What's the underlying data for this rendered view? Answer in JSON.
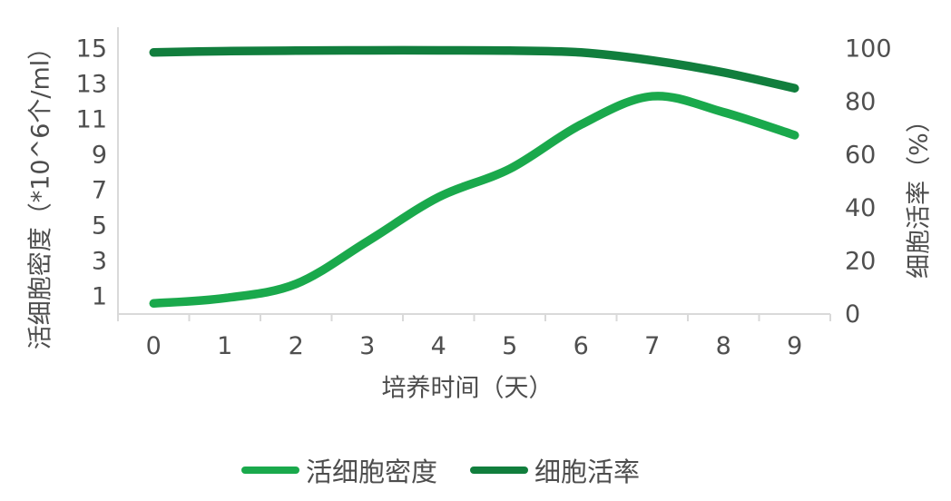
{
  "chart_data": {
    "type": "line",
    "title": "",
    "x": [
      0,
      1,
      2,
      3,
      4,
      5,
      6,
      7,
      8,
      9
    ],
    "xlabel": "培养时间（天）",
    "y_left": {
      "label": "活细胞密度（*10^6个/ml）",
      "ticks": [
        1,
        3,
        5,
        7,
        9,
        11,
        13,
        15
      ],
      "range": [
        0,
        16.2
      ]
    },
    "y_right": {
      "label": "细胞活率（%）",
      "ticks": [
        0,
        20,
        40,
        60,
        80,
        100
      ],
      "range": [
        0,
        108
      ]
    },
    "series": [
      {
        "name": "活细胞密度",
        "axis": "left",
        "color": "#1aa94c",
        "values": [
          0.6,
          0.9,
          1.7,
          4.1,
          6.6,
          8.2,
          10.7,
          12.3,
          11.4,
          10.1
        ]
      },
      {
        "name": "细胞活率",
        "axis": "right",
        "color": "#117e3d",
        "values": [
          98.5,
          99,
          99.2,
          99.3,
          99.3,
          99.2,
          98.5,
          95.5,
          91,
          85
        ]
      }
    ],
    "grid": false,
    "smooth": true,
    "legend_position": "bottom",
    "colors": {
      "axis_line": "#d9d9d9",
      "text": "#4f4f4f",
      "background": "#ffffff"
    }
  }
}
